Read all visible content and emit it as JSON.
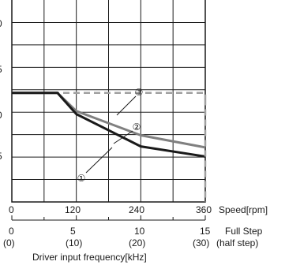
{
  "chart_data": {
    "type": "line",
    "xlabel": "Speed[rpm]",
    "ylim_left_ticks": [
      "0",
      "5",
      "0",
      "5"
    ],
    "x_ticks": [
      "0",
      "120",
      "240",
      "360"
    ],
    "xlim": [
      0,
      360
    ],
    "ylim": [
      0,
      1
    ],
    "grid": true,
    "secondary_axis": {
      "label_full": "Full Step",
      "label_half": "(half step)",
      "full_ticks": [
        "0",
        "5",
        "10",
        "15"
      ],
      "half_ticks": [
        "(0)",
        "(10)",
        "(20)",
        "(30)"
      ],
      "title": "Driver input frequency[kHz]"
    },
    "series": [
      {
        "name": "①",
        "color": "#1a1a1a",
        "dash": "solid",
        "points": [
          [
            0,
            0.54
          ],
          [
            85,
            0.54
          ],
          [
            120,
            0.435
          ],
          [
            240,
            0.275
          ],
          [
            360,
            0.225
          ]
        ]
      },
      {
        "name": "②",
        "color": "#808080",
        "dash": "solid",
        "points": [
          [
            0,
            0.54
          ],
          [
            85,
            0.54
          ],
          [
            120,
            0.45
          ],
          [
            240,
            0.33
          ],
          [
            360,
            0.27
          ]
        ]
      },
      {
        "name": "③",
        "color": "#a0a0a0",
        "dash": "dashed",
        "points": [
          [
            0,
            0.54
          ],
          [
            360,
            0.54
          ],
          [
            360,
            0.51
          ]
        ]
      }
    ],
    "labels": [
      "③",
      "②",
      "①"
    ]
  }
}
